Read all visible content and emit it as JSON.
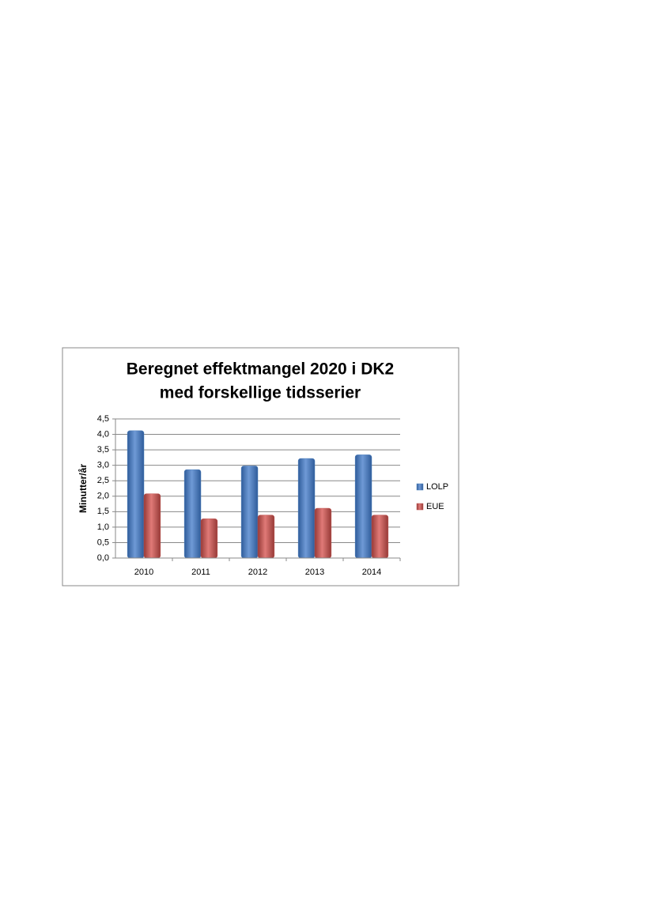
{
  "chart_data": {
    "type": "bar",
    "title": [
      "Beregnet effektmangel 2020 i DK2",
      "med forskellige tidsserier"
    ],
    "y_label": "Minutter/år",
    "categories": [
      "2010",
      "2011",
      "2012",
      "2013",
      "2014"
    ],
    "series": [
      {
        "name": "LOLP",
        "color": "#4f81bd",
        "values": [
          4.12,
          2.86,
          2.98,
          3.22,
          3.34
        ]
      },
      {
        "name": "EUE",
        "color": "#c0504d",
        "values": [
          2.08,
          1.27,
          1.39,
          1.61,
          1.39
        ]
      }
    ],
    "ylim": [
      0,
      4.5
    ],
    "yticks": [
      {
        "value": 0,
        "label": "0,0"
      },
      {
        "value": 0.5,
        "label": "0,5"
      },
      {
        "value": 1,
        "label": "1,0"
      },
      {
        "value": 1.5,
        "label": "1,5"
      },
      {
        "value": 2,
        "label": "2,0"
      },
      {
        "value": 2.5,
        "label": "2,5"
      },
      {
        "value": 3,
        "label": "3,0"
      },
      {
        "value": 3.5,
        "label": "3,5"
      },
      {
        "value": 4,
        "label": "4,0"
      },
      {
        "value": 4.5,
        "label": "4,5"
      }
    ],
    "grid": true,
    "legend": "right"
  }
}
